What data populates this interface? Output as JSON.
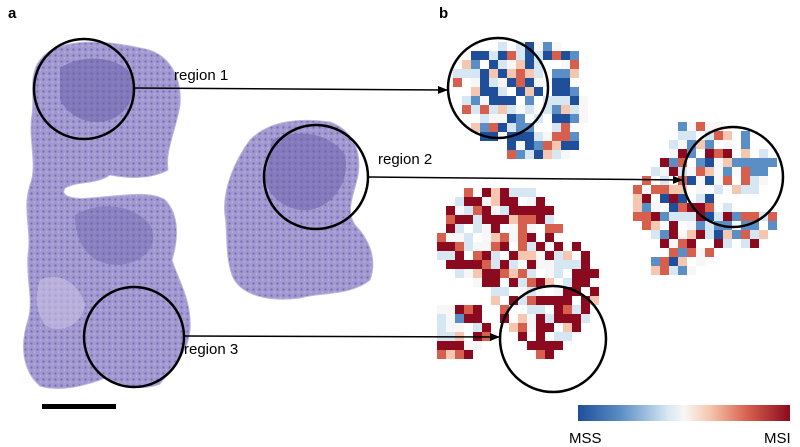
{
  "panels": {
    "a": "a",
    "b": "b"
  },
  "regions": [
    {
      "label": "region 1"
    },
    {
      "label": "region 2"
    },
    {
      "label": "region 3"
    }
  ],
  "colorbar": {
    "min_label": "MSS",
    "max_label": "MSI",
    "stops": [
      "#1f4e9a",
      "#5a8ec4",
      "#d6e6f2",
      "#f7f7f7",
      "#f6c7b0",
      "#d6604d",
      "#8b0a1f"
    ]
  },
  "colors": {
    "tissue": "#8f86c6",
    "tissue_dark": "#5c4f9e",
    "tissue_light": "#c8c1e2",
    "circle": "#000000",
    "arrow": "#000000"
  }
}
